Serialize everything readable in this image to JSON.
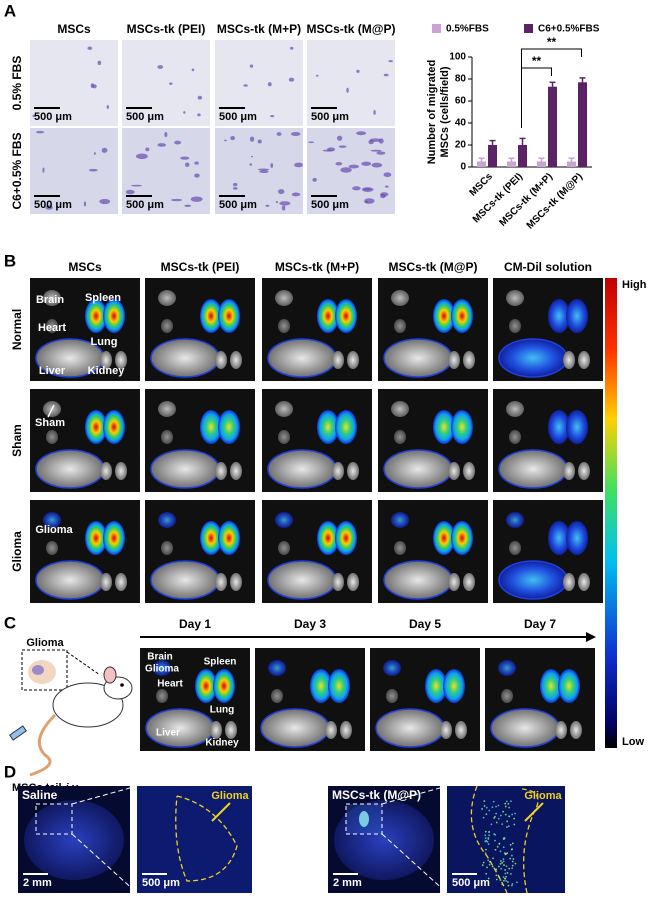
{
  "panel_a": {
    "label": "A",
    "columns": [
      "MSCs",
      "MSCs-tk (PEI)",
      "MSCs-tk (M+P)",
      "MSCs-tk (M@P)"
    ],
    "rows": [
      "0.5% FBS",
      "C6+0.5% FBS"
    ],
    "scale_bar": "500 μm"
  },
  "chart_data": {
    "type": "bar",
    "y_label": [
      "Number of migrated",
      "MSCs (cells/field)"
    ],
    "categories": [
      "MSCs",
      "MSCs-tk (PEI)",
      "MSCs-tk (M+P)",
      "MSCs-tk (M@P)"
    ],
    "series": [
      {
        "name": "0.5%FBS",
        "color": "#c9a3d4",
        "values": [
          5,
          5,
          5,
          5
        ],
        "errors": [
          3,
          3,
          3,
          3
        ]
      },
      {
        "name": "C6+0.5%FBS",
        "color": "#5b2366",
        "values": [
          20,
          20,
          73,
          77
        ],
        "errors": [
          4,
          6,
          4,
          4
        ]
      }
    ],
    "ylim": [
      0,
      100
    ],
    "yticks": [
      0,
      20,
      40,
      60,
      80,
      100
    ],
    "annotations": [
      "**",
      "**"
    ],
    "legend": "top"
  },
  "panel_b": {
    "label": "B",
    "columns": [
      "MSCs",
      "MSCs-tk (PEI)",
      "MSCs-tk (M+P)",
      "MSCs-tk (M@P)",
      "CM-Dil solution"
    ],
    "rows": [
      "Normal",
      "Sham",
      "Glioma"
    ],
    "organs": [
      "Brain",
      "Spleen",
      "Heart",
      "Lung",
      "Liver",
      "Kidney"
    ],
    "markers": [
      "Sham",
      "Glioma"
    ],
    "colorbar": {
      "high": "High",
      "low": "Low"
    }
  },
  "panel_c": {
    "label": "C",
    "model": {
      "site": "Glioma",
      "injection": "MSCs tail",
      "route": "i.v."
    },
    "days": [
      "Day 1",
      "Day 3",
      "Day 5",
      "Day 7"
    ],
    "organs": [
      "Brain",
      "Glioma",
      "Spleen",
      "Heart",
      "Lung",
      "Liver",
      "Kidney"
    ]
  },
  "panel_d": {
    "label": "D",
    "groups": [
      {
        "name": "Saline",
        "region": "Glioma",
        "scale_overview": "2 mm",
        "scale_zoom": "500 μm"
      },
      {
        "name": "MSCs-tk (M@P)",
        "region": "Glioma",
        "scale_overview": "2 mm",
        "scale_zoom": "500 μm"
      }
    ]
  }
}
